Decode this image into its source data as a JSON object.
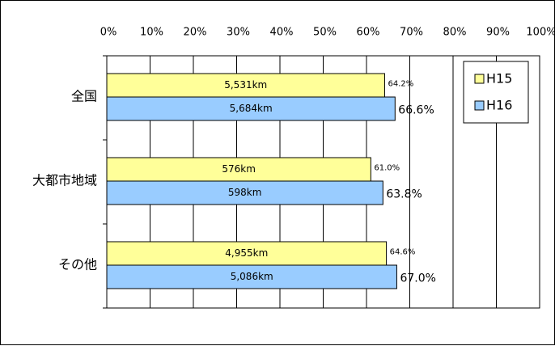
{
  "chart_data": {
    "type": "bar",
    "orientation": "horizontal",
    "categories": [
      "全国",
      "大都市地域",
      "その他"
    ],
    "series": [
      {
        "name": "H15",
        "color": "#ffff99",
        "values": [
          64.2,
          61.0,
          64.6
        ],
        "value_labels": [
          "64.2%",
          "61.0%",
          "64.6%"
        ],
        "inner_labels": [
          "5,531km",
          "576km",
          "4,955km"
        ]
      },
      {
        "name": "H16",
        "color": "#99ccff",
        "values": [
          66.6,
          63.8,
          67.0
        ],
        "value_labels": [
          "66.6%",
          "63.8%",
          "67.0%"
        ],
        "inner_labels": [
          "5,684km",
          "598km",
          "5,086km"
        ]
      }
    ],
    "xlim": [
      0,
      100
    ],
    "xticks": [
      "0%",
      "10%",
      "20%",
      "30%",
      "40%",
      "50%",
      "60%",
      "70%",
      "80%",
      "90%",
      "100%"
    ],
    "grid": true,
    "legend_position": "top-right",
    "title": "",
    "xlabel": "",
    "ylabel": ""
  }
}
